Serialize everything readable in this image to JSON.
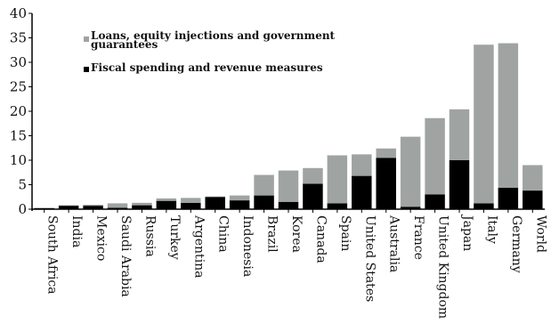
{
  "chart_data": {
    "type": "bar",
    "stacked": true,
    "categories": [
      "South Africa",
      "India",
      "Mexico",
      "Saudi Arabia",
      "Russia",
      "Turkey",
      "Argentina",
      "China",
      "Indonesia",
      "Brazil",
      "Korea",
      "Canada",
      "Spain",
      "United States",
      "Australia",
      "France",
      "United Kingdom",
      "Japan",
      "Italy",
      "Germany",
      "World"
    ],
    "series": [
      {
        "name": "Fiscal spending and revenue measures",
        "color": "#000000",
        "values": [
          0.2,
          0.7,
          0.7,
          0.3,
          0.8,
          1.7,
          1.3,
          2.5,
          1.8,
          2.8,
          1.5,
          5.2,
          1.2,
          6.8,
          10.5,
          0.5,
          3.0,
          10.0,
          1.2,
          4.4,
          3.8
        ]
      },
      {
        "name": "Loans, equity injections and government guarantees",
        "color": "#9fa4a3",
        "values": [
          0.1,
          0.1,
          0.2,
          0.9,
          0.5,
          0.5,
          1.0,
          0.1,
          1.0,
          4.2,
          6.4,
          3.2,
          9.8,
          4.4,
          1.9,
          14.3,
          15.6,
          10.4,
          32.4,
          29.5,
          5.2
        ]
      }
    ],
    "ylim": [
      0,
      40
    ],
    "yticks": [
      0,
      5,
      10,
      15,
      20,
      25,
      30,
      35,
      40
    ],
    "legend": {
      "position": "top-left",
      "items": [
        {
          "series": 1,
          "lines": [
            "Loans, equity injections and government",
            "guarantees"
          ]
        },
        {
          "series": 0,
          "lines": [
            "Fiscal spending and revenue measures"
          ]
        }
      ]
    },
    "title": "",
    "xlabel": "",
    "ylabel": ""
  }
}
